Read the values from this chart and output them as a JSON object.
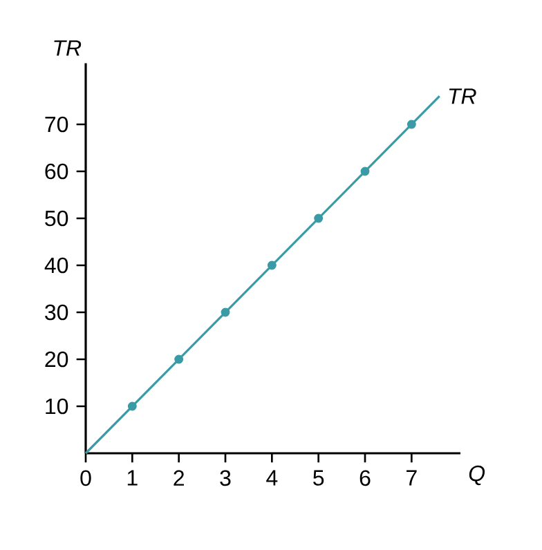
{
  "chart_data": {
    "type": "line",
    "xlabel": "Q",
    "ylabel": "TR",
    "series": [
      {
        "name": "TR",
        "color": "#3a9ba6",
        "x": [
          0,
          7.6
        ],
        "values": [
          0,
          76
        ],
        "marker": "none"
      },
      {
        "type": "scatter",
        "color": "#3a9ba6",
        "x": [
          1,
          2,
          3,
          4,
          5,
          6,
          7
        ],
        "values": [
          10,
          20,
          30,
          40,
          50,
          60,
          70
        ],
        "marker": "circle"
      }
    ],
    "xlim": [
      0,
      8.05
    ],
    "ylim": [
      0,
      83
    ],
    "xticks": [
      {
        "value": 0,
        "label": "0"
      },
      1,
      2,
      3,
      4,
      5,
      6,
      7
    ],
    "yticks": [
      10,
      20,
      30,
      40,
      50,
      60,
      70
    ]
  }
}
